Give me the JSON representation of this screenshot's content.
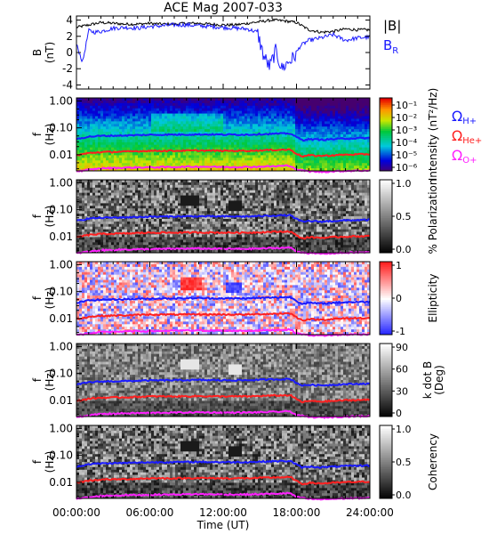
{
  "chart_data": {
    "title": "ACE Mag 2007-033",
    "xlabel": "Time (UT)",
    "x_ticks": [
      "00:00:00",
      "06:00:00",
      "12:00:00",
      "18:00:00",
      "24:00:00"
    ],
    "xlim_hours": [
      0,
      24
    ],
    "panels": [
      {
        "type": "line",
        "ylabel_top": "B",
        "ylabel_bottom": "(nT)",
        "ylim": [
          -4.5,
          4.5
        ],
        "y_ticks": [
          "4",
          "2",
          "0",
          "-2",
          "-4"
        ],
        "legend": [
          {
            "text": "|B|",
            "color": "#000000"
          },
          {
            "text": "B",
            "sub": "R",
            "color": "#1a1aff"
          }
        ],
        "series": [
          {
            "name": "|B|",
            "color": "#000000",
            "x": [
              0,
              1,
              2,
              3,
              4,
              5,
              6,
              7,
              8,
              9,
              10,
              11,
              12,
              13,
              14,
              15,
              16,
              17,
              18,
              19,
              20,
              21,
              22,
              23,
              24
            ],
            "y": [
              3.1,
              3.4,
              3.7,
              3.6,
              3.5,
              3.5,
              3.6,
              3.5,
              3.5,
              3.6,
              3.6,
              3.5,
              3.4,
              3.4,
              3.6,
              3.8,
              4.0,
              3.9,
              3.7,
              2.8,
              2.5,
              2.6,
              2.9,
              2.8,
              2.8
            ]
          },
          {
            "name": "B",
            "color": "#1a1aff",
            "x": [
              0,
              0.5,
              1,
              1.5,
              2,
              3,
              4,
              5,
              6,
              7,
              8,
              9,
              10,
              11,
              12,
              13,
              14,
              14.8,
              15.3,
              15.8,
              16.3,
              16.8,
              17.3,
              17.8,
              18.3,
              19,
              20,
              21,
              22,
              23,
              24
            ],
            "y": [
              1.0,
              -1.2,
              2.7,
              2.5,
              2.6,
              3.0,
              3.1,
              3.0,
              3.2,
              3.3,
              3.4,
              3.4,
              3.3,
              3.2,
              3.1,
              3.0,
              2.9,
              2.5,
              -0.4,
              -1.8,
              0.2,
              -2.0,
              -1.2,
              -0.6,
              0.8,
              1.5,
              1.8,
              2.2,
              1.5,
              1.8,
              1.9
            ]
          }
        ]
      },
      {
        "type": "heatmap",
        "palette": "rainbow",
        "ylabel_top": "f",
        "ylabel_bottom": "(Hz)",
        "y_ticks": [
          "1.00",
          "0.10",
          "0.01"
        ],
        "colorbar": {
          "label": "Intensity (nT²/Hz)",
          "ticks": [
            "10⁻¹",
            "10⁻²",
            "10⁻³",
            "10⁻⁴",
            "10⁻⁵",
            "10⁻⁶"
          ]
        },
        "legend": [
          {
            "text": "Ω",
            "sub": "H+",
            "color": "#1a1aff"
          },
          {
            "text": "Ω",
            "sub": "He+",
            "color": "#ff2020"
          },
          {
            "text": "Ω",
            "sub": "O+",
            "color": "#ff20ff"
          }
        ]
      },
      {
        "type": "heatmap",
        "palette": "gray",
        "ylabel_top": "f",
        "ylabel_bottom": "(Hz)",
        "y_ticks": [
          "1.00",
          "0.10",
          "0.01"
        ],
        "colorbar": {
          "label": "% Polarization",
          "ticks": [
            "1.0",
            "0.5",
            "0.0"
          ]
        }
      },
      {
        "type": "heatmap",
        "palette": "bluered",
        "ylabel_top": "f",
        "ylabel_bottom": "(Hz)",
        "y_ticks": [
          "1.00",
          "0.10",
          "0.01"
        ],
        "colorbar": {
          "label": "Ellipticity",
          "ticks": [
            "1",
            "0",
            "-1"
          ]
        }
      },
      {
        "type": "heatmap",
        "palette": "gray",
        "ylabel_top": "f",
        "ylabel_bottom": "(Hz)",
        "y_ticks": [
          "1.00",
          "0.10",
          "0.01"
        ],
        "colorbar": {
          "label": "k dot B (Deg)",
          "label_lines": [
            "k dot B",
            "(Deg)"
          ],
          "ticks": [
            "90",
            "60",
            "30",
            "0"
          ]
        }
      },
      {
        "type": "heatmap",
        "palette": "gray",
        "ylabel_top": "f",
        "ylabel_bottom": "(Hz)",
        "y_ticks": [
          "1.00",
          "0.10",
          "0.01"
        ],
        "colorbar": {
          "label": "Coherency",
          "ticks": [
            "1.0",
            "0.5",
            "0.0"
          ]
        }
      }
    ],
    "gyrofrequency_lines": [
      {
        "name": "H+",
        "color": "#1a1aff",
        "x": [
          0,
          1,
          2,
          4,
          6,
          8,
          10,
          12,
          14,
          16,
          17.5,
          18,
          18.5,
          19,
          20,
          22,
          24
        ],
        "y": [
          0.038,
          0.047,
          0.05,
          0.052,
          0.055,
          0.056,
          0.057,
          0.056,
          0.056,
          0.06,
          0.062,
          0.045,
          0.035,
          0.038,
          0.036,
          0.04,
          0.042
        ]
      },
      {
        "name": "He+",
        "color": "#ff2020",
        "x": [
          0,
          1,
          2,
          4,
          6,
          8,
          10,
          12,
          14,
          16,
          17.5,
          18,
          18.5,
          19,
          20,
          22,
          24
        ],
        "y": [
          0.0095,
          0.0115,
          0.0125,
          0.013,
          0.014,
          0.014,
          0.0143,
          0.014,
          0.014,
          0.015,
          0.0155,
          0.011,
          0.0085,
          0.0095,
          0.009,
          0.01,
          0.0105
        ]
      },
      {
        "name": "O+",
        "color": "#ff20ff",
        "x": [
          0,
          2,
          4,
          6,
          8,
          10,
          12,
          14,
          16,
          17.5,
          18,
          19,
          20,
          22,
          24
        ],
        "y": [
          0.0024,
          0.0031,
          0.0033,
          0.0034,
          0.0035,
          0.0036,
          0.0035,
          0.0035,
          0.0037,
          0.0039,
          0.0028,
          0.0024,
          0.0023,
          0.0025,
          0.0026
        ]
      }
    ],
    "freq_range_hz": [
      0.0025,
      1.3
    ]
  }
}
